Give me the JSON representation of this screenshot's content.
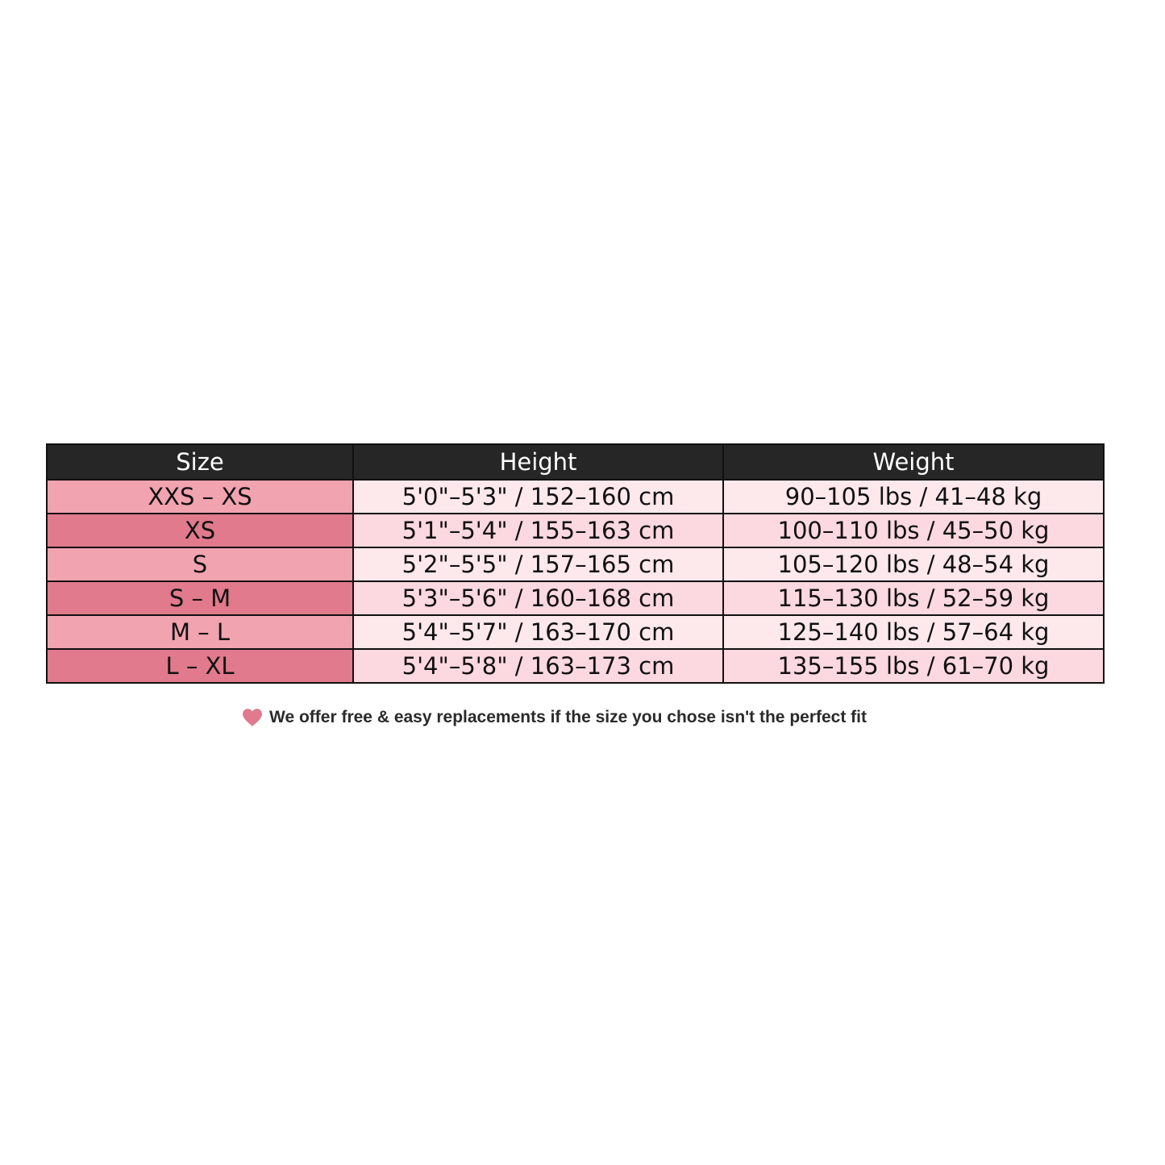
{
  "table": {
    "headers": [
      "Size",
      "Height",
      "Weight"
    ],
    "rows": [
      {
        "size": "XXS – XS",
        "height": "5'0\"–5'3\" / 152–160 cm",
        "weight": "90–105 lbs / 41–48 kg"
      },
      {
        "size": "XS",
        "height": "5'1\"–5'4\" / 155–163 cm",
        "weight": "100–110 lbs / 45–50 kg"
      },
      {
        "size": "S",
        "height": "5'2\"–5'5\" / 157–165 cm",
        "weight": "105–120 lbs / 48–54 kg"
      },
      {
        "size": "S – M",
        "height": "5'3\"–5'6\" / 160–168 cm",
        "weight": "115–130 lbs / 52–59 kg"
      },
      {
        "size": "M – L",
        "height": "5'4\"–5'7\" / 163–170 cm",
        "weight": "125–140 lbs / 57–64 kg"
      },
      {
        "size": "L – XL",
        "height": "5'4\"–5'8\" / 163–173 cm",
        "weight": "135–155 lbs / 61–70 kg"
      }
    ]
  },
  "note": {
    "icon": "heart-icon",
    "text": "We offer free & easy replacements if the size you chose isn't the perfect fit"
  },
  "colors": {
    "header": "#262626",
    "size_light": "#f2a3b0",
    "size_dark": "#e07a8c",
    "cell_light": "#fde8ec",
    "cell_dark": "#fcd8e0",
    "heart": "#e07a8c"
  }
}
